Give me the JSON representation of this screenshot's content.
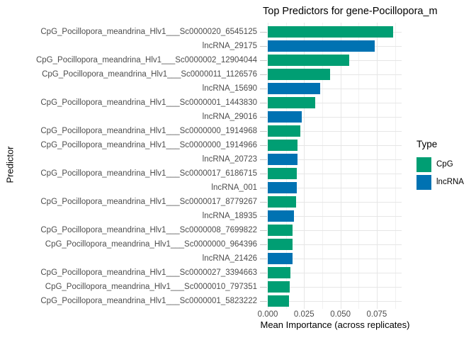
{
  "chart_data": {
    "type": "bar",
    "orientation": "horizontal",
    "title": "Top Predictors for gene-Pocillopora_m",
    "xlabel": "Mean Importance (across replicates)",
    "ylabel": "Predictor",
    "x_tick_labels": [
      "0.000",
      "0.025",
      "0.050",
      "0.075"
    ],
    "x_tick_values": [
      0,
      0.025,
      0.05,
      0.075
    ],
    "x_minor_tick_values": [
      0.0125,
      0.0375,
      0.0625,
      0.0875
    ],
    "xlim": [
      0,
      0.092
    ],
    "grid": true,
    "legend": {
      "title": "Type",
      "position": "right",
      "entries": [
        {
          "label": "CpG",
          "color": "#009E73"
        },
        {
          "label": "lncRNA",
          "color": "#0072B2"
        }
      ]
    },
    "colors": {
      "CpG": "#009E73",
      "lncRNA": "#0072B2"
    },
    "bars": [
      {
        "label": "CpG_Pocillopora_meandrina_Hlv1___Sc0000020_6545125",
        "type": "CpG",
        "value": 0.0865
      },
      {
        "label": "lncRNA_29175",
        "type": "lncRNA",
        "value": 0.0735
      },
      {
        "label": "CpG_Pocillopora_meandrina_Hlv1___Sc0000002_12904044",
        "type": "CpG",
        "value": 0.056
      },
      {
        "label": "CpG_Pocillopora_meandrina_Hlv1___Sc0000011_1126576",
        "type": "CpG",
        "value": 0.043
      },
      {
        "label": "lncRNA_15690",
        "type": "lncRNA",
        "value": 0.036
      },
      {
        "label": "CpG_Pocillopora_meandrina_Hlv1___Sc0000001_1443830",
        "type": "CpG",
        "value": 0.0325
      },
      {
        "label": "lncRNA_29016",
        "type": "lncRNA",
        "value": 0.0235
      },
      {
        "label": "CpG_Pocillopora_meandrina_Hlv1___Sc0000000_1914968",
        "type": "CpG",
        "value": 0.0225
      },
      {
        "label": "CpG_Pocillopora_meandrina_Hlv1___Sc0000000_1914966",
        "type": "CpG",
        "value": 0.0205
      },
      {
        "label": "lncRNA_20723",
        "type": "lncRNA",
        "value": 0.0203
      },
      {
        "label": "CpG_Pocillopora_meandrina_Hlv1___Sc0000017_6186715",
        "type": "CpG",
        "value": 0.02
      },
      {
        "label": "lncRNA_001",
        "type": "lncRNA",
        "value": 0.0198
      },
      {
        "label": "CpG_Pocillopora_meandrina_Hlv1___Sc0000017_8779267",
        "type": "CpG",
        "value": 0.0193
      },
      {
        "label": "lncRNA_18935",
        "type": "lncRNA",
        "value": 0.0182
      },
      {
        "label": "CpG_Pocillopora_meandrina_Hlv1___Sc0000008_7699822",
        "type": "CpG",
        "value": 0.0172
      },
      {
        "label": "CpG_Pocillopora_meandrina_Hlv1___Sc0000000_964396",
        "type": "CpG",
        "value": 0.0171
      },
      {
        "label": "lncRNA_21426",
        "type": "lncRNA",
        "value": 0.0169
      },
      {
        "label": "CpG_Pocillopora_meandrina_Hlv1___Sc0000027_3394663",
        "type": "CpG",
        "value": 0.0156
      },
      {
        "label": "CpG_Pocillopora_meandrina_Hlv1___Sc0000010_797351",
        "type": "CpG",
        "value": 0.015
      },
      {
        "label": "CpG_Pocillopora_meandrina_Hlv1___Sc0000001_5823222",
        "type": "CpG",
        "value": 0.0145
      }
    ]
  }
}
